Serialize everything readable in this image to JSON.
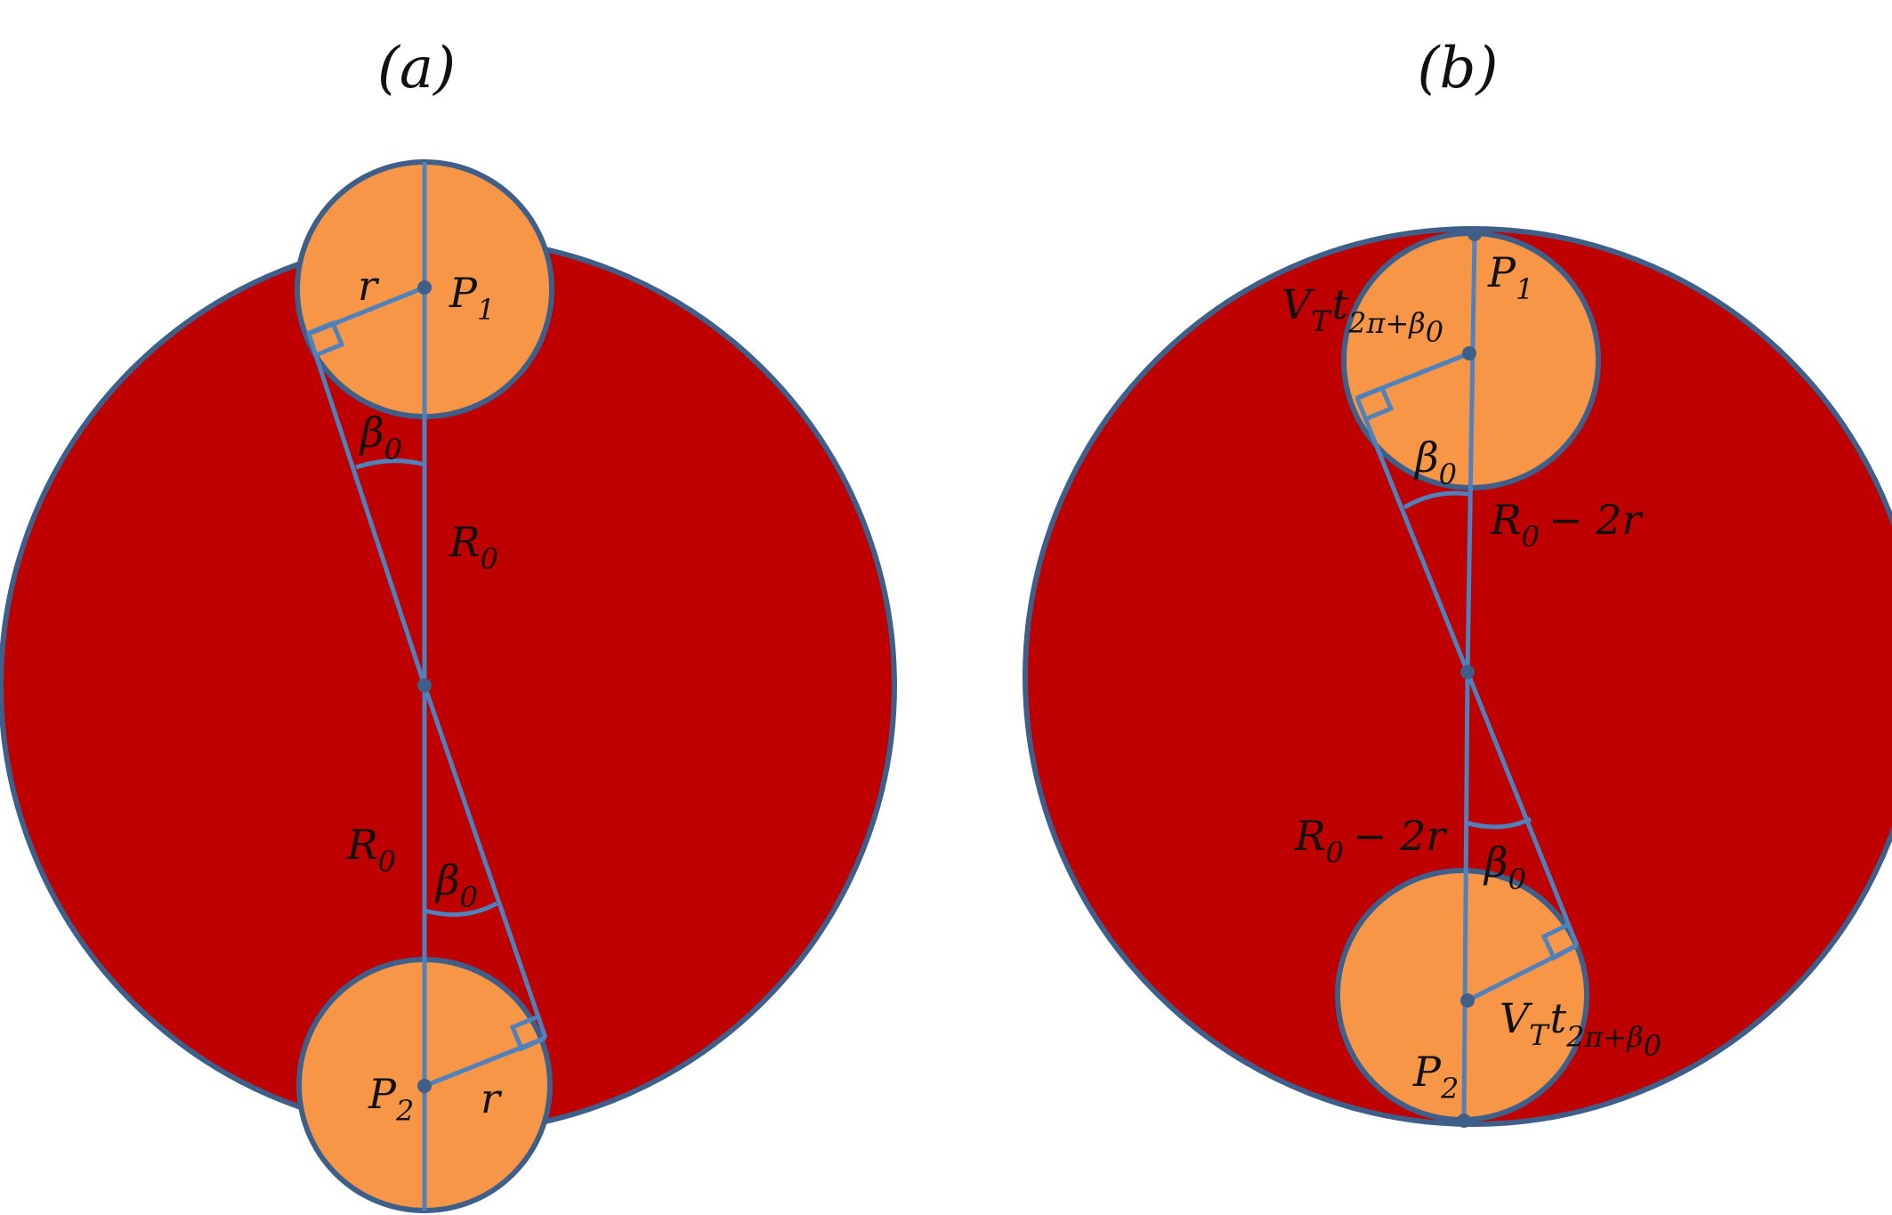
{
  "panels": {
    "a": {
      "label": "(a)",
      "labels": {
        "r_top": "r",
        "p1": "P",
        "p1_sub": "1",
        "beta_top": "β",
        "beta_top_sub": "0",
        "r0_top": "R",
        "r0_top_sub": "0",
        "r0_bottom": "R",
        "r0_bottom_sub": "0",
        "beta_bottom": "β",
        "beta_bottom_sub": "0",
        "p2": "P",
        "p2_sub": "2",
        "r_bottom": "r"
      }
    },
    "b": {
      "label": "(b)",
      "labels": {
        "p1": "P",
        "p1_sub": "1",
        "vt_top_v": "V",
        "vt_top_v_sub": "T",
        "vt_top_t": "t",
        "vt_top_t_sub": "2π+β",
        "vt_top_t_subsub": "0",
        "beta_top": "β",
        "beta_top_sub": "0",
        "r0m2r_top": "R",
        "r0m2r_top_sub": "0",
        "r0m2r_top_rest": "− 2r",
        "r0m2r_bottom": "R",
        "r0m2r_bottom_sub": "0",
        "r0m2r_bottom_rest": "− 2r",
        "beta_bottom": "β",
        "beta_bottom_sub": "0",
        "vt_bottom_v": "V",
        "vt_bottom_v_sub": "T",
        "vt_bottom_t": "t",
        "vt_bottom_t_sub": "2π+β",
        "vt_bottom_t_subsub": "0",
        "p2": "P",
        "p2_sub": "2"
      }
    }
  },
  "colors": {
    "big_circle_fill": "#bf0000",
    "small_circle_fill": "#f79646",
    "circle_stroke": "#3e5f8a",
    "line_color": "#4f81bd"
  }
}
